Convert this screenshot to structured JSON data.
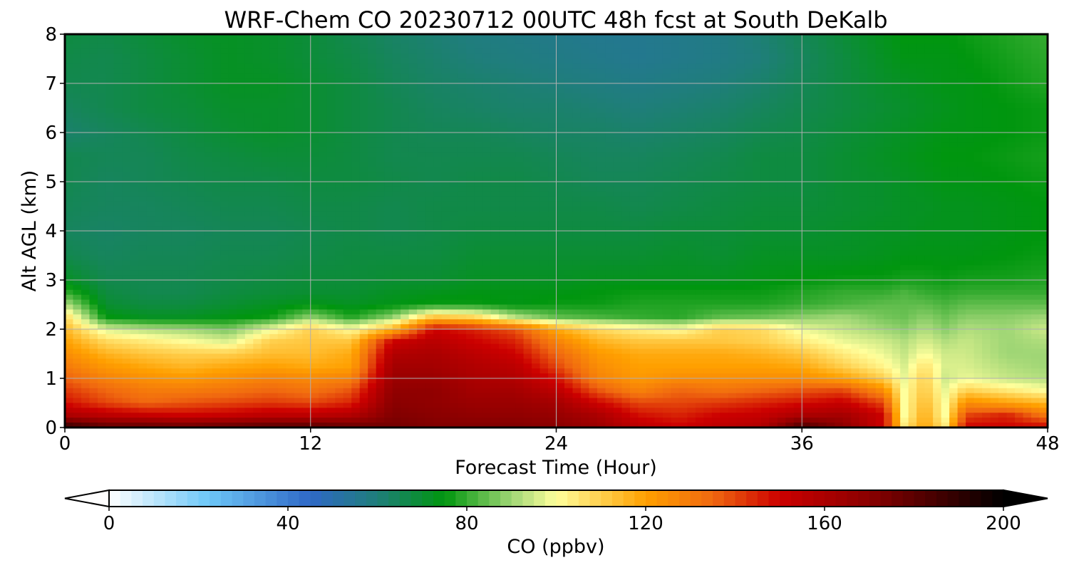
{
  "chart_data": {
    "type": "heatmap",
    "title": "WRF-Chem CO  20230712 00UTC 48h fcst at South DeKalb",
    "xlabel": "Forecast Time (Hour)",
    "ylabel": "Alt AGL (km)",
    "xlim": [
      0,
      48
    ],
    "ylim": [
      0,
      8
    ],
    "x_ticks": [
      0,
      12,
      24,
      36,
      48
    ],
    "y_ticks": [
      0,
      1,
      2,
      3,
      4,
      5,
      6,
      7,
      8
    ],
    "grid": true,
    "time_hours": [
      0,
      2,
      4,
      6,
      8,
      10,
      12,
      14,
      16,
      18,
      20,
      22,
      24,
      26,
      28,
      30,
      32,
      34,
      36,
      38,
      40,
      41,
      42,
      43,
      44,
      46,
      48
    ],
    "altitude_km": [
      0,
      0.25,
      0.5,
      0.75,
      1,
      1.25,
      1.5,
      1.75,
      2,
      2.25,
      2.5,
      2.75,
      3,
      3.5,
      4,
      4.5,
      5,
      5.5,
      6,
      6.5,
      7,
      7.5,
      8
    ],
    "co_ppbv": [
      [
        190,
        180,
        180,
        178,
        180,
        182,
        182,
        178,
        175,
        172,
        172,
        172,
        170,
        165,
        155,
        150,
        155,
        158,
        185,
        170,
        150,
        105,
        120,
        105,
        150,
        150,
        150
      ],
      [
        160,
        155,
        152,
        150,
        152,
        155,
        155,
        158,
        172,
        170,
        168,
        168,
        166,
        160,
        148,
        145,
        150,
        152,
        160,
        162,
        150,
        100,
        118,
        100,
        140,
        145,
        130
      ],
      [
        148,
        140,
        135,
        138,
        140,
        142,
        140,
        145,
        170,
        168,
        165,
        165,
        162,
        150,
        140,
        140,
        142,
        145,
        148,
        152,
        140,
        100,
        115,
        100,
        125,
        120,
        115
      ],
      [
        142,
        135,
        130,
        130,
        132,
        135,
        132,
        138,
        168,
        168,
        162,
        162,
        155,
        138,
        128,
        135,
        132,
        135,
        138,
        140,
        125,
        100,
        112,
        98,
        110,
        105,
        100
      ],
      [
        136,
        128,
        124,
        122,
        125,
        128,
        126,
        128,
        165,
        165,
        160,
        158,
        148,
        128,
        122,
        125,
        125,
        125,
        125,
        120,
        110,
        98,
        110,
        95,
        98,
        94,
        92
      ],
      [
        130,
        122,
        118,
        115,
        118,
        120,
        118,
        120,
        162,
        162,
        158,
        155,
        140,
        125,
        120,
        120,
        120,
        120,
        118,
        110,
        102,
        96,
        106,
        96,
        96,
        92,
        90
      ],
      [
        125,
        116,
        112,
        110,
        110,
        114,
        114,
        118,
        158,
        160,
        155,
        150,
        135,
        122,
        118,
        118,
        118,
        116,
        112,
        104,
        98,
        94,
        100,
        95,
        95,
        90,
        90
      ],
      [
        120,
        108,
        104,
        100,
        96,
        110,
        112,
        112,
        150,
        156,
        150,
        145,
        128,
        116,
        112,
        112,
        112,
        110,
        104,
        98,
        95,
        92,
        96,
        92,
        94,
        90,
        92
      ],
      [
        115,
        96,
        92,
        90,
        86,
        98,
        110,
        100,
        116,
        150,
        145,
        138,
        118,
        108,
        103,
        100,
        110,
        108,
        98,
        94,
        90,
        88,
        92,
        88,
        92,
        90,
        95
      ],
      [
        108,
        75,
        72,
        72,
        74,
        76,
        88,
        78,
        88,
        112,
        108,
        92,
        84,
        82,
        80,
        79,
        84,
        85,
        88,
        90,
        86,
        85,
        88,
        85,
        88,
        88,
        90
      ],
      [
        92,
        70,
        68,
        68,
        70,
        72,
        74,
        72,
        74,
        76,
        76,
        74,
        76,
        76,
        78,
        78,
        78,
        78,
        80,
        82,
        84,
        84,
        84,
        82,
        84,
        84,
        84
      ],
      [
        80,
        68,
        66,
        66,
        68,
        69,
        70,
        70,
        72,
        73,
        74,
        74,
        74,
        75,
        76,
        76,
        76,
        76,
        78,
        80,
        80,
        82,
        80,
        79,
        80,
        80,
        80
      ],
      [
        72,
        66,
        66,
        66,
        67,
        68,
        69,
        69,
        70,
        70,
        72,
        72,
        72,
        73,
        73,
        73,
        73,
        74,
        75,
        76,
        76,
        77,
        77,
        76,
        77,
        77,
        78
      ],
      [
        66,
        64,
        65,
        65,
        66,
        66,
        67,
        68,
        68,
        68,
        70,
        70,
        70,
        70,
        70,
        71,
        70,
        72,
        72,
        72,
        73,
        74,
        74,
        74,
        74,
        75,
        76
      ],
      [
        64,
        63,
        64,
        64,
        65,
        65,
        66,
        67,
        66,
        67,
        68,
        68,
        68,
        68,
        68,
        69,
        69,
        70,
        70,
        71,
        72,
        72,
        73,
        73,
        73,
        74,
        75
      ],
      [
        65,
        64,
        64,
        65,
        66,
        66,
        67,
        67,
        66,
        67,
        67,
        67,
        67,
        67,
        66,
        67,
        68,
        69,
        69,
        70,
        71,
        72,
        72,
        73,
        73,
        74,
        75
      ],
      [
        66,
        64,
        65,
        66,
        67,
        67,
        68,
        68,
        67,
        66,
        67,
        67,
        66,
        65,
        65,
        66,
        67,
        68,
        68,
        70,
        71,
        72,
        73,
        74,
        74,
        75,
        76
      ],
      [
        66,
        65,
        65,
        67,
        68,
        69,
        69,
        68,
        66,
        66,
        66,
        66,
        65,
        64,
        64,
        65,
        66,
        68,
        68,
        70,
        72,
        73,
        74,
        75,
        75,
        76,
        77
      ],
      [
        62,
        64,
        66,
        68,
        70,
        71,
        70,
        68,
        66,
        65,
        65,
        64,
        63,
        63,
        62,
        63,
        64,
        66,
        67,
        69,
        71,
        72,
        73,
        74,
        74,
        75,
        76
      ],
      [
        64,
        66,
        68,
        69,
        71,
        71,
        70,
        68,
        66,
        64,
        63,
        62,
        62,
        61,
        60,
        61,
        62,
        64,
        66,
        68,
        70,
        71,
        72,
        73,
        74,
        75,
        76
      ],
      [
        66,
        66,
        68,
        70,
        72,
        72,
        70,
        68,
        65,
        63,
        62,
        61,
        60,
        59,
        58,
        59,
        60,
        62,
        65,
        68,
        71,
        72,
        73,
        74,
        74,
        76,
        78
      ],
      [
        67,
        66,
        68,
        70,
        72,
        71,
        69,
        67,
        64,
        62,
        60,
        59,
        58,
        57,
        56,
        57,
        58,
        60,
        64,
        68,
        72,
        74,
        74,
        74,
        75,
        77,
        79
      ],
      [
        68,
        67,
        69,
        71,
        72,
        71,
        69,
        66,
        63,
        61,
        59,
        58,
        57,
        56,
        56,
        57,
        58,
        61,
        65,
        69,
        73,
        75,
        75,
        75,
        76,
        78,
        80
      ]
    ],
    "colorbar": {
      "label": "CO  (ppbv)",
      "min": 0,
      "max": 200,
      "ticks": [
        0,
        40,
        80,
        120,
        160,
        200
      ],
      "extend": "both",
      "orientation": "horizontal",
      "stops": [
        {
          "value": 0,
          "color": "#ffffff"
        },
        {
          "value": 22,
          "color": "#6ec8f8"
        },
        {
          "value": 45,
          "color": "#2f68c6"
        },
        {
          "value": 60,
          "color": "#1f7e7a"
        },
        {
          "value": 75,
          "color": "#00960e"
        },
        {
          "value": 90,
          "color": "#9fd675"
        },
        {
          "value": 100,
          "color": "#ffff9c"
        },
        {
          "value": 120,
          "color": "#ffa000"
        },
        {
          "value": 135,
          "color": "#f06810"
        },
        {
          "value": 150,
          "color": "#cc0000"
        },
        {
          "value": 170,
          "color": "#8a0000"
        },
        {
          "value": 200,
          "color": "#000000"
        }
      ]
    }
  }
}
